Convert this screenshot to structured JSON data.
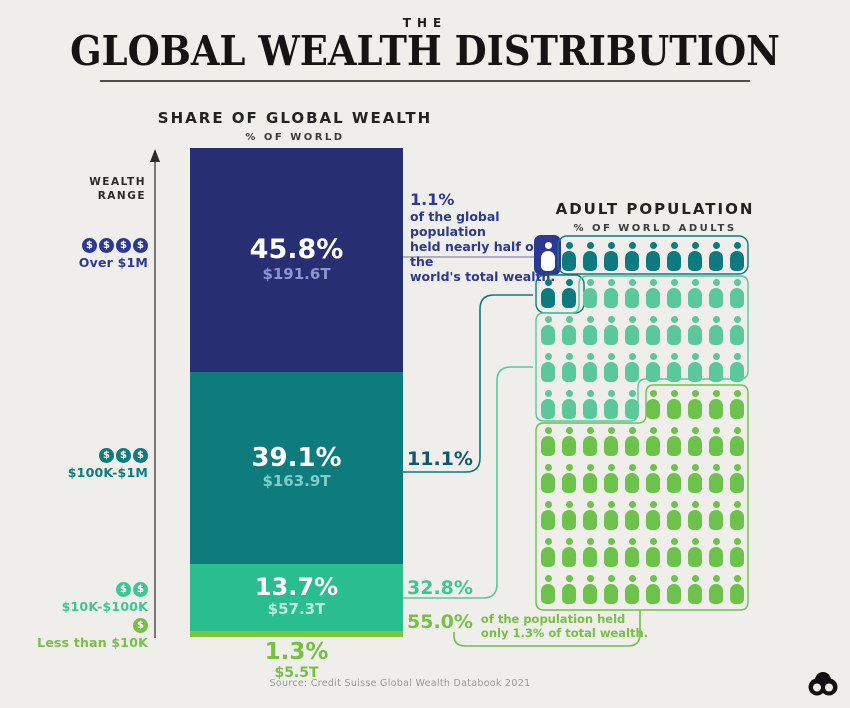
{
  "header": {
    "kicker": "THE",
    "title": "GLOBAL WEALTH DISTRIBUTION"
  },
  "share_panel": {
    "title": "SHARE OF GLOBAL WEALTH",
    "subtitle": "% OF WORLD",
    "axis_label_line1": "WEALTH",
    "axis_label_line2": "RANGE"
  },
  "population_panel": {
    "title": "ADULT POPULATION",
    "subtitle": "% OF WORLD ADULTS"
  },
  "wealth_ranges": [
    {
      "label": "Over $1M",
      "coins": 4,
      "color": "#2b3990"
    },
    {
      "label": "$100K-$1M",
      "coins": 3,
      "color": "#0e7c7c"
    },
    {
      "label": "$10K-$100K",
      "coins": 2,
      "color": "#3ec695"
    },
    {
      "label": "Less than $10K",
      "coins": 1,
      "color": "#76c043"
    }
  ],
  "annotations": {
    "top": {
      "pct": "1.1%",
      "line1": "of the global population",
      "line2": "held nearly half of the",
      "line3": "world's total wealth."
    },
    "mid1": {
      "pct": "11.1%"
    },
    "mid2": {
      "pct": "32.8%"
    },
    "bottom": {
      "pct": "55.0%",
      "line1": "of the population held",
      "line2": "only 1.3% of total wealth."
    }
  },
  "footer": {
    "source": "Source: Credit Suisse Global Wealth Databook 2021",
    "logo": "visual-capitalist-mark"
  },
  "colors": {
    "background": "#efeeeb",
    "navy": "#272e72",
    "navy_text": "#2b3990",
    "teal": "#0e7c7c",
    "teal_dark_text": "#11586e",
    "mint": "#2abd8d",
    "green": "#7dc642",
    "person_white": "#ffffff",
    "person_teal": "#0d7a80",
    "person_mint": "#5ac89b",
    "person_green": "#6dc24b",
    "connector_gray": "#9b9bad",
    "amount_on_navy": "#8d96cf",
    "amount_on_teal": "#7fcdc4",
    "amount_on_mint": "#baeeda",
    "green_label": "#76c043",
    "mint_label": "#3ec695"
  },
  "chart_data": {
    "type": "bar",
    "title": "The Global Wealth Distribution",
    "subtitle_left": "Share of global wealth (% of world)",
    "subtitle_right": "Adult population (% of world adults)",
    "source": "Source: Credit Suisse Global Wealth Databook 2021",
    "categories": [
      "Over $1M",
      "$100K-$1M",
      "$10K-$100K",
      "Less than $10K"
    ],
    "series": [
      {
        "name": "Share of global wealth (% of world)",
        "values": [
          45.8,
          39.1,
          13.7,
          1.3
        ],
        "labels": [
          "45.8%",
          "39.1%",
          "13.7%",
          "1.3%"
        ],
        "amounts": [
          "$191.6T",
          "$163.9T",
          "$57.3T",
          "$5.5T"
        ]
      },
      {
        "name": "Adult population (% of world adults)",
        "values": [
          1.1,
          11.1,
          32.8,
          55.0
        ],
        "labels": [
          "1.1%",
          "11.1%",
          "32.8%",
          "55.0%"
        ],
        "pictogram_counts": [
          1,
          11,
          33,
          55
        ],
        "pictogram_total": 100
      }
    ],
    "layout_hints": {
      "bar_stacked": true,
      "pictogram_grid": "10x10",
      "legend": "none",
      "grid": "off"
    }
  }
}
